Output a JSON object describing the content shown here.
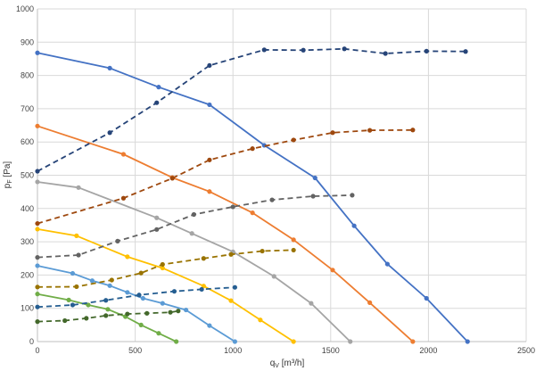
{
  "chart_data": {
    "type": "line",
    "title": "",
    "xlabel": "q",
    "xlabel_sub": "V",
    "xlabel_unit": " [m³/h]",
    "ylabel": "p",
    "ylabel_sub": "F",
    "ylabel_unit": " [Pa]",
    "xlim": [
      0,
      2500
    ],
    "ylim": [
      0,
      1000
    ],
    "xticks": [
      0,
      500,
      1000,
      1500,
      2000,
      2500
    ],
    "yticks": [
      0,
      100,
      200,
      300,
      400,
      500,
      600,
      700,
      800,
      900,
      1000
    ],
    "grid": true,
    "legend": "none",
    "series": [
      {
        "style": "solid",
        "color": "#4472C4",
        "x": [
          0,
          370,
          620,
          880,
          1160,
          1420,
          1620,
          1790,
          1990,
          2200
        ],
        "y": [
          868,
          822,
          765,
          712,
          590,
          492,
          348,
          233,
          130,
          0
        ]
      },
      {
        "style": "solid",
        "color": "#ED7D31",
        "x": [
          0,
          440,
          690,
          880,
          1100,
          1310,
          1510,
          1700,
          1920
        ],
        "y": [
          648,
          563,
          493,
          451,
          387,
          306,
          215,
          117,
          0
        ]
      },
      {
        "style": "solid",
        "color": "#A5A5A5",
        "x": [
          0,
          210,
          610,
          790,
          1000,
          1210,
          1400,
          1600
        ],
        "y": [
          480,
          463,
          372,
          325,
          270,
          196,
          115,
          0
        ]
      },
      {
        "style": "solid",
        "color": "#FFC000",
        "x": [
          0,
          200,
          460,
          640,
          850,
          990,
          1140,
          1310
        ],
        "y": [
          338,
          318,
          255,
          221,
          167,
          123,
          65,
          0
        ]
      },
      {
        "style": "solid",
        "color": "#5B9BD5",
        "x": [
          0,
          180,
          280,
          370,
          460,
          540,
          640,
          760,
          880,
          1010
        ],
        "y": [
          228,
          205,
          183,
          168,
          148,
          130,
          115,
          95,
          48,
          0
        ]
      },
      {
        "style": "solid",
        "color": "#70AD47",
        "x": [
          0,
          160,
          260,
          360,
          450,
          530,
          620,
          710
        ],
        "y": [
          143,
          125,
          110,
          97,
          75,
          50,
          25,
          0
        ]
      },
      {
        "style": "dashed",
        "color": "#264478",
        "x": [
          0,
          370,
          610,
          880,
          1160,
          1360,
          1570,
          1780,
          1990,
          2190
        ],
        "y": [
          512,
          628,
          718,
          830,
          877,
          876,
          880,
          866,
          873,
          872
        ]
      },
      {
        "style": "dashed",
        "color": "#9E480E",
        "x": [
          0,
          440,
          690,
          880,
          1100,
          1310,
          1510,
          1700,
          1920
        ],
        "y": [
          355,
          431,
          491,
          546,
          580,
          606,
          628,
          635,
          636
        ]
      },
      {
        "style": "dashed",
        "color": "#636363",
        "x": [
          0,
          210,
          410,
          610,
          800,
          1000,
          1200,
          1410,
          1610
        ],
        "y": [
          253,
          260,
          302,
          337,
          382,
          405,
          426,
          437,
          440
        ]
      },
      {
        "style": "dashed",
        "color": "#997300",
        "x": [
          0,
          200,
          380,
          530,
          640,
          850,
          990,
          1150,
          1310
        ],
        "y": [
          164,
          165,
          185,
          206,
          232,
          250,
          262,
          272,
          275
        ]
      },
      {
        "style": "dashed",
        "color": "#255E91",
        "x": [
          0,
          180,
          350,
          520,
          700,
          840,
          1010
        ],
        "y": [
          104,
          110,
          124,
          140,
          151,
          157,
          163
        ]
      },
      {
        "style": "dashed",
        "color": "#43682B",
        "x": [
          0,
          140,
          250,
          350,
          460,
          560,
          680,
          720
        ],
        "y": [
          60,
          63,
          70,
          78,
          83,
          85,
          88,
          92
        ]
      }
    ]
  }
}
